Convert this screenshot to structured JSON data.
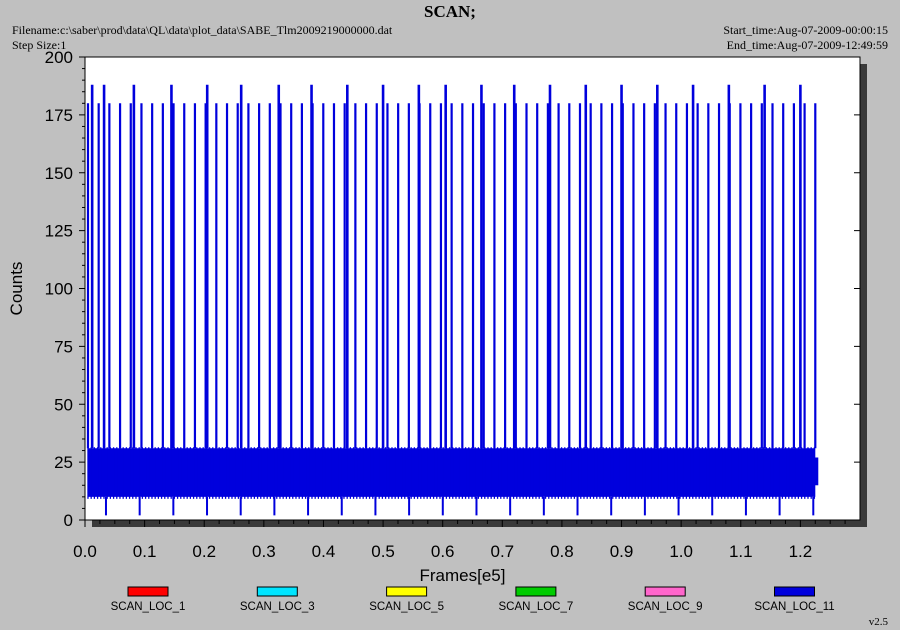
{
  "header": {
    "title": "SCAN;",
    "filename": "Filename:c:\\saber\\prod\\data\\QL\\data\\plot_data\\SABE_Tlm2009219000000.dat",
    "step_size": "Step Size:1",
    "start_time": "Start_time:Aug-07-2009-00:00:15",
    "end_time": "End_time:Aug-07-2009-12:49:59"
  },
  "version": "v2.5",
  "chart_data": {
    "type": "line",
    "title": "SCAN;",
    "xlabel": "Frames[e5]",
    "ylabel": "Counts",
    "xlim": [
      0,
      1.3
    ],
    "ylim": [
      0,
      200
    ],
    "xticks": [
      "0.0",
      "0.1",
      "0.2",
      "0.3",
      "0.4",
      "0.5",
      "0.6",
      "0.7",
      "0.8",
      "0.9",
      "1.0",
      "1.1",
      "1.2"
    ],
    "yticks": [
      "0",
      "25",
      "50",
      "75",
      "100",
      "125",
      "150",
      "175",
      "200"
    ],
    "grid": false,
    "legend_position": "bottom",
    "series": [
      {
        "name": "SCAN_LOC_1",
        "color": "#ff0000",
        "values": []
      },
      {
        "name": "SCAN_LOC_3",
        "color": "#00e5ff",
        "values": []
      },
      {
        "name": "SCAN_LOC_5",
        "color": "#ffff00",
        "values": []
      },
      {
        "name": "SCAN_LOC_7",
        "color": "#00cc00",
        "values": []
      },
      {
        "name": "SCAN_LOC_9",
        "color": "#ff66cc",
        "values": []
      },
      {
        "name": "SCAN_LOC_11",
        "color": "#0000dd",
        "baseline_band": [
          10,
          31
        ],
        "spike_tops": [
          188,
          180
        ],
        "spike_x_start": 0.005,
        "spike_x_end": 1.225,
        "spike_count": 69,
        "tall_spike_x": [
          0.012,
          0.032,
          0.082,
          0.145,
          0.205,
          0.262,
          0.325,
          0.38,
          0.44,
          0.5,
          0.56,
          0.605,
          0.665,
          0.72,
          0.78,
          0.84,
          0.9,
          0.96,
          1.02,
          1.08,
          1.14,
          1.2
        ]
      }
    ]
  }
}
